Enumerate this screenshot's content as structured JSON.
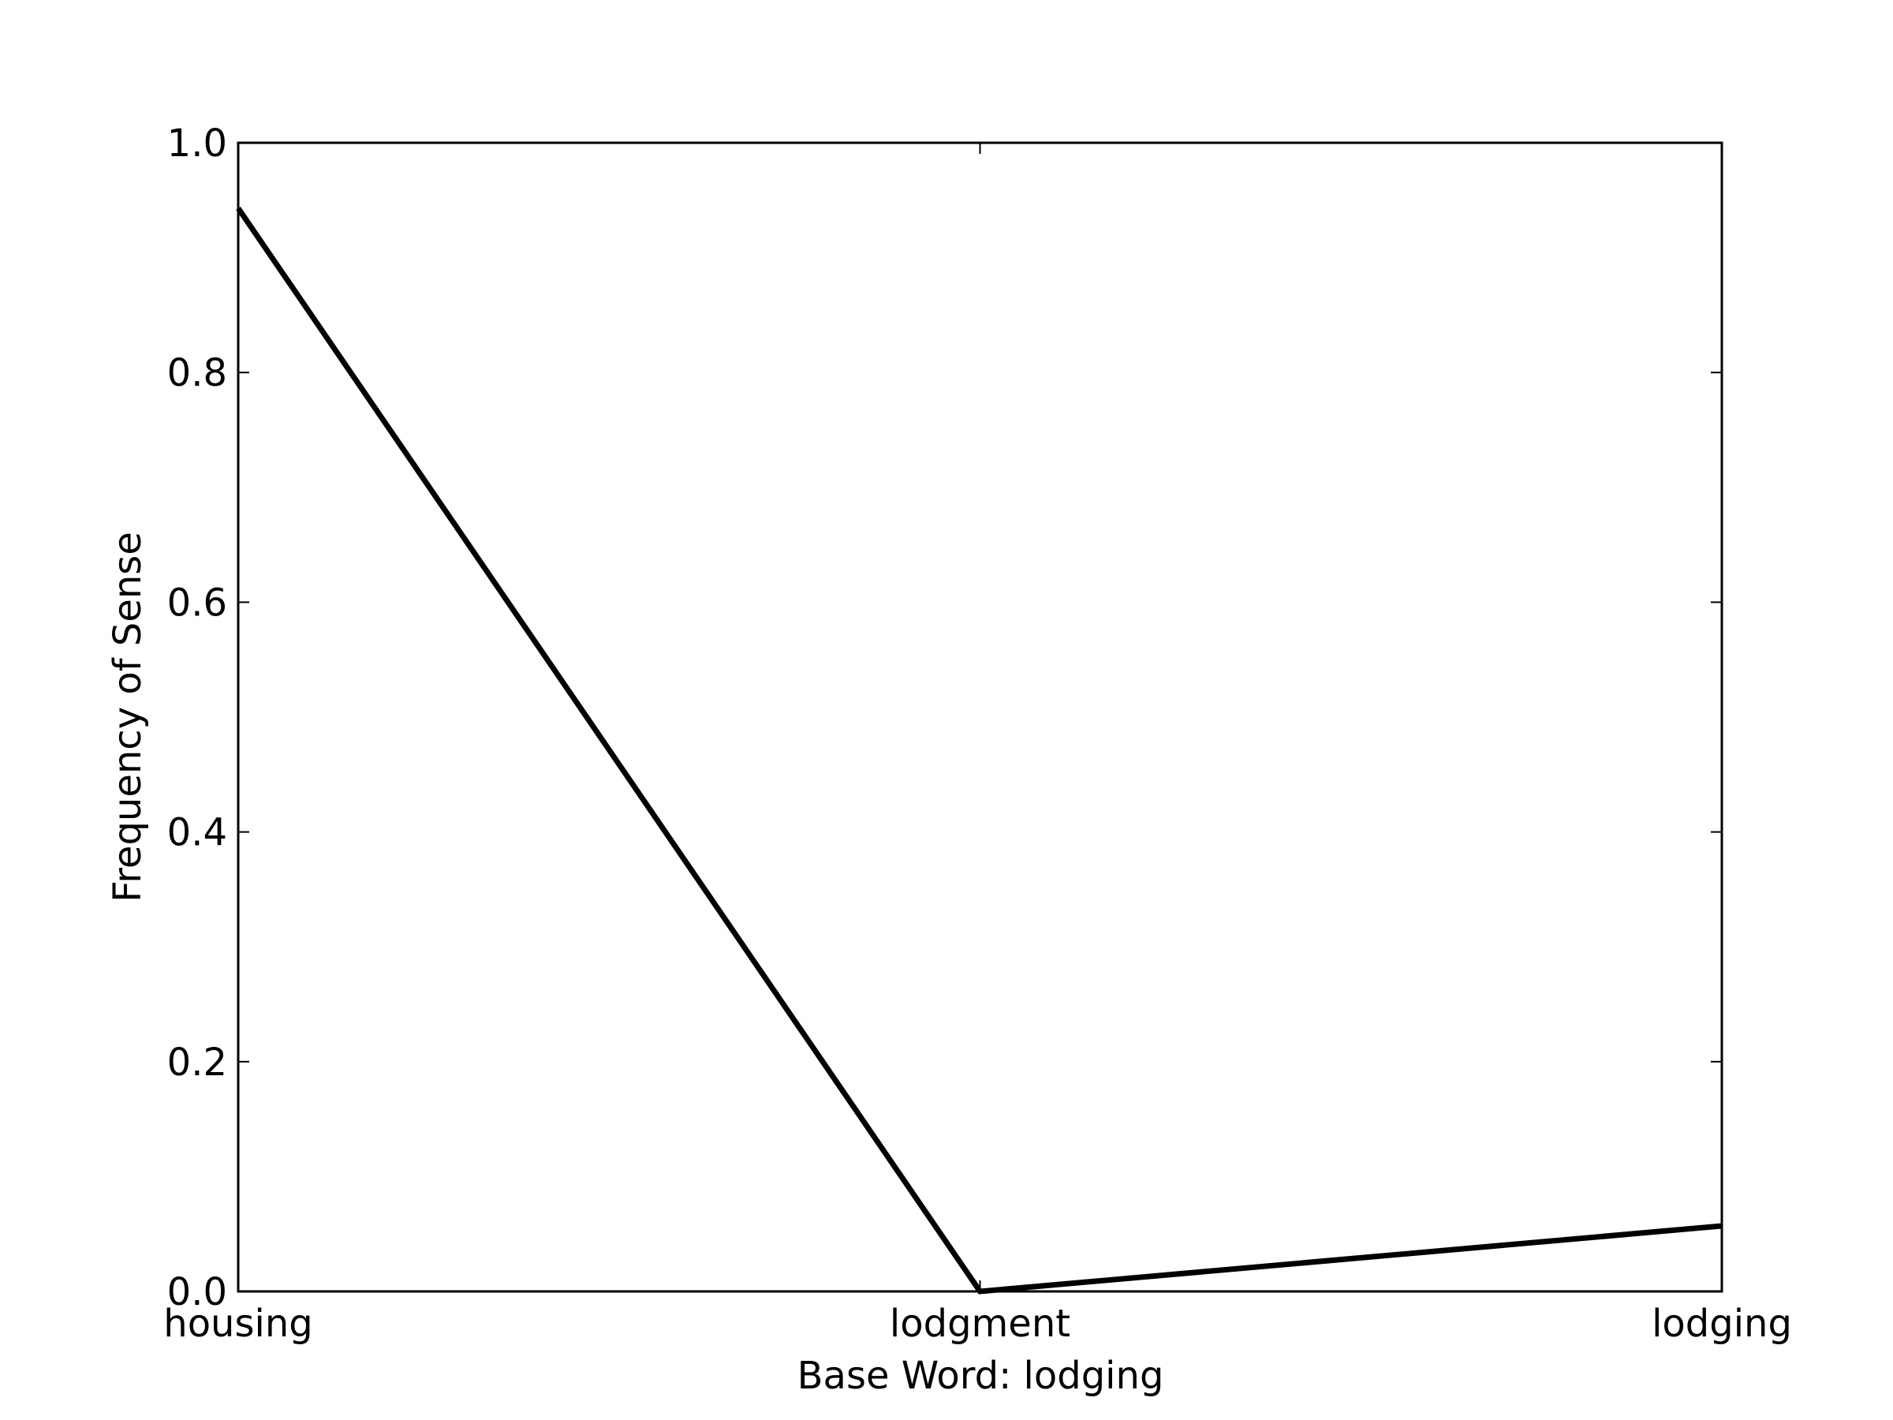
{
  "chart_data": {
    "type": "line",
    "title": "",
    "xlabel": "Base Word: lodging",
    "ylabel": "Frequency of Sense",
    "categories": [
      "housing",
      "lodgment",
      "lodging"
    ],
    "series": [
      {
        "values": [
          0.943,
          0.0,
          0.057
        ],
        "color": "#000000"
      }
    ],
    "ylim": [
      0.0,
      1.0
    ],
    "yticks": [
      "0.0",
      "0.2",
      "0.4",
      "0.6",
      "0.8",
      "1.0"
    ],
    "grid": false
  }
}
